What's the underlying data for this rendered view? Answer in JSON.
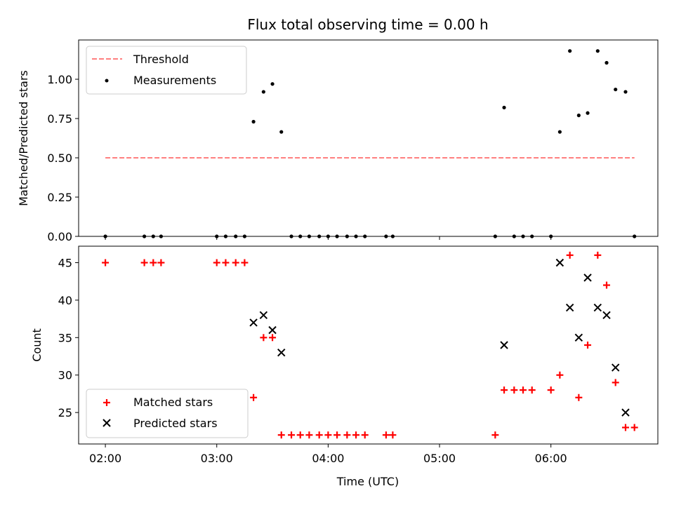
{
  "chart_data": {
    "type": "scatter",
    "title": "Flux total observing time = 0.00 h",
    "xlabel": "Time (UTC)",
    "x_ticks": [
      "02:00",
      "03:00",
      "04:00",
      "05:00",
      "06:00"
    ],
    "x_range_hours": [
      1.76,
      6.96
    ],
    "top": {
      "ylabel": "Matched/Predicted stars",
      "ylim": [
        0,
        1.25
      ],
      "y_ticks": [
        "0.00",
        "0.25",
        "0.50",
        "0.75",
        "1.00"
      ],
      "legend": {
        "placement": "upper-left",
        "threshold_label": "Threshold",
        "measurements_label": "Measurements"
      },
      "threshold": {
        "value": 0.5,
        "x_start": 2.0,
        "x_end": 6.75,
        "color": "#ff7f7f"
      },
      "measurements": {
        "x": [
          2.0,
          2.35,
          2.43,
          2.5,
          3.0,
          3.08,
          3.17,
          3.25,
          3.33,
          3.42,
          3.5,
          3.58,
          3.67,
          3.75,
          3.83,
          3.92,
          4.0,
          4.08,
          4.17,
          4.25,
          4.33,
          4.52,
          4.58,
          5.5,
          5.58,
          5.67,
          5.75,
          5.83,
          6.0,
          6.08,
          6.17,
          6.25,
          6.33,
          6.42,
          6.5,
          6.58,
          6.67,
          6.75
        ],
        "y": [
          0,
          0,
          0,
          0,
          0,
          0,
          0,
          0,
          0.73,
          0.92,
          0.97,
          0.665,
          0,
          0,
          0,
          0,
          0,
          0,
          0,
          0,
          0,
          0,
          0,
          0,
          0.82,
          0,
          0,
          0,
          0,
          0.665,
          1.18,
          0.77,
          0.785,
          1.18,
          1.105,
          0.935,
          0.92,
          0
        ]
      }
    },
    "bottom": {
      "ylabel": "Count",
      "ylim": [
        20.8,
        47.2
      ],
      "y_ticks": [
        "25",
        "30",
        "35",
        "40",
        "45"
      ],
      "legend": {
        "placement": "lower-left",
        "matched_label": "Matched stars",
        "predicted_label": "Predicted stars"
      },
      "matched": {
        "color": "#ff0000",
        "x": [
          2.0,
          2.35,
          2.43,
          2.5,
          3.0,
          3.08,
          3.17,
          3.25,
          3.33,
          3.42,
          3.5,
          3.58,
          3.67,
          3.75,
          3.83,
          3.92,
          4.0,
          4.08,
          4.17,
          4.25,
          4.33,
          4.52,
          4.58,
          5.5,
          5.58,
          5.67,
          5.75,
          5.83,
          6.0,
          6.08,
          6.17,
          6.25,
          6.33,
          6.42,
          6.5,
          6.58,
          6.67,
          6.75
        ],
        "y": [
          45,
          45,
          45,
          45,
          45,
          45,
          45,
          45,
          27,
          35,
          35,
          22,
          22,
          22,
          22,
          22,
          22,
          22,
          22,
          22,
          22,
          22,
          22,
          22,
          28,
          28,
          28,
          28,
          28,
          30,
          46,
          27,
          34,
          46,
          42,
          29,
          23,
          23
        ]
      },
      "predicted": {
        "color": "#000000",
        "x": [
          3.33,
          3.42,
          3.5,
          3.58,
          5.58,
          6.08,
          6.17,
          6.25,
          6.33,
          6.42,
          6.5,
          6.58,
          6.67
        ],
        "y": [
          37,
          38,
          36,
          33,
          34,
          45,
          39,
          35,
          43,
          39,
          38,
          31,
          25
        ]
      }
    }
  }
}
